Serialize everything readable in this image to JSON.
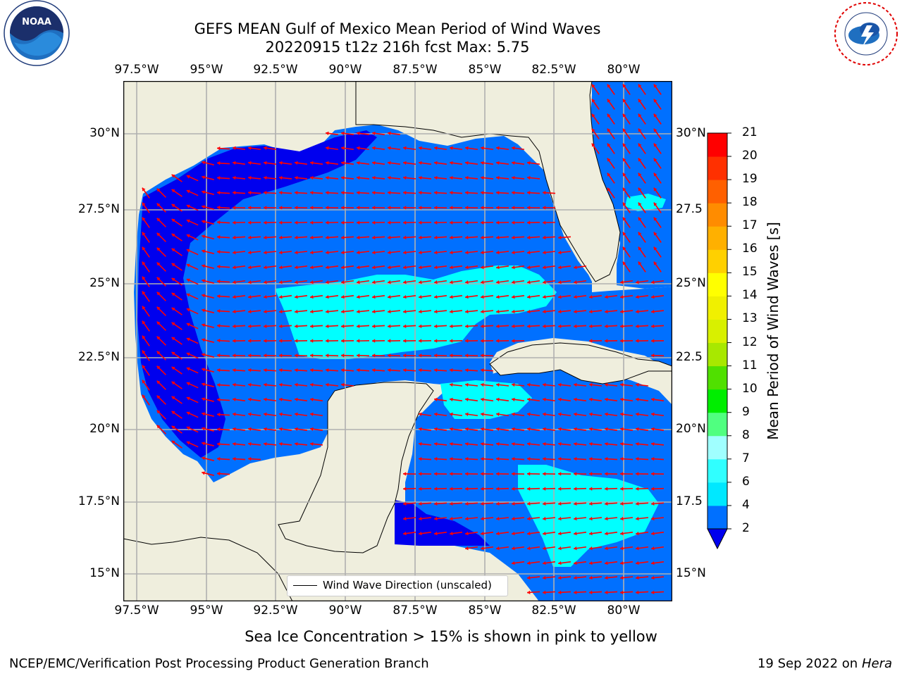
{
  "title_line1": "GEFS MEAN Gulf of Mexico Mean Period of Wind Waves",
  "title_line2": "20220915 t12z 216h fcst   Max: 5.75",
  "lon_labels": [
    "97.5°W",
    "95°W",
    "92.5°W",
    "90°W",
    "87.5°W",
    "85°W",
    "82.5°W",
    "80°W"
  ],
  "lat_labels_left": [
    "30°N",
    "27.5°N",
    "25°N",
    "22.5°N",
    "20°N",
    "17.5°N",
    "15°N"
  ],
  "lat_labels_right": [
    "30°N",
    "27.5",
    "25°N",
    "22.5",
    "20°N",
    "17.5",
    "15°N"
  ],
  "legend_label": "Wind Wave Direction (unscaled)",
  "colorbar": {
    "label": "Mean Period of Wind Waves [s]",
    "ticks": [
      "2",
      "4",
      "6",
      "7",
      "8",
      "9",
      "10",
      "11",
      "12",
      "13",
      "14",
      "15",
      "16",
      "17",
      "18",
      "19",
      "20",
      "21"
    ],
    "colors": [
      "#0070ff",
      "#00e8ff",
      "#30ffff",
      "#a0ffff",
      "#50ff80",
      "#00ee00",
      "#50e000",
      "#a8e800",
      "#d8f000",
      "#f0f000",
      "#ffff00",
      "#ffd000",
      "#ffb000",
      "#ff8c00",
      "#ff6000",
      "#ff3000",
      "#ff0000"
    ],
    "extend_color": "#0000ee"
  },
  "footer_note": "Sea Ice Concentration > 15% is shown in pink to yellow",
  "footer_left": "NCEP/EMC/Verification Post Processing Product Generation Branch",
  "footer_date": "19 Sep 2022 on",
  "footer_host": "Hera",
  "logos": {
    "left": "noaa-logo",
    "right": "nws-logo"
  },
  "colors": {
    "land": "#efeedd",
    "wave_low": "#0070ff",
    "wave_cyan": "#00ffff",
    "wave_deep": "#0000ee",
    "arrow": "#ff0000",
    "grid": "#b0b0b0"
  }
}
